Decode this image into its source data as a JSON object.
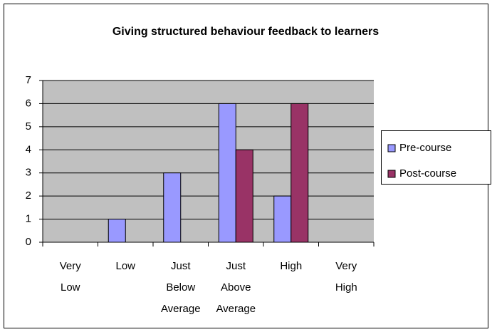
{
  "chart_data": {
    "type": "bar",
    "title": "Giving structured behaviour feedback to learners",
    "categories": [
      "Very Low",
      "Low",
      "Just Below Average",
      "Just Above Average",
      "High",
      "Very High"
    ],
    "series": [
      {
        "name": "Pre-course",
        "color": "#9999ff",
        "values": [
          0,
          1,
          3,
          6,
          2,
          0
        ]
      },
      {
        "name": "Post-course",
        "color": "#993366",
        "values": [
          0,
          0,
          0,
          4,
          6,
          0
        ]
      }
    ],
    "ylim": [
      0,
      7
    ],
    "yticks": [
      0,
      1,
      2,
      3,
      4,
      5,
      6,
      7
    ],
    "grid": true,
    "legend": "right"
  }
}
